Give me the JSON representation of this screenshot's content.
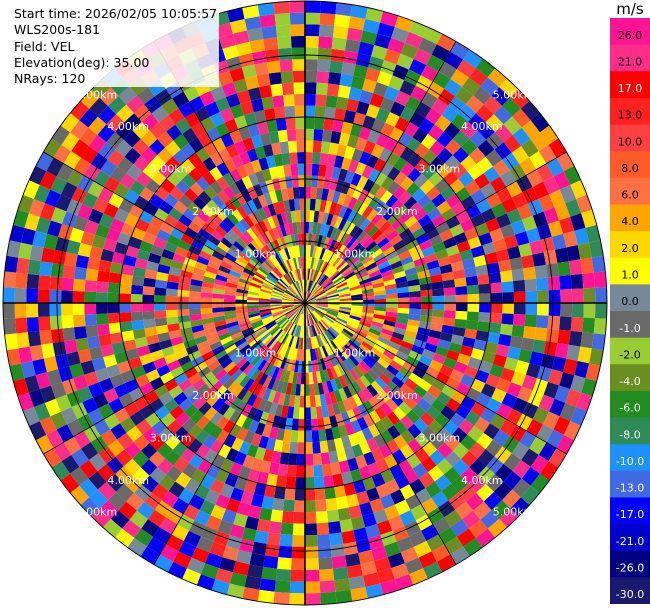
{
  "info": {
    "start_time": "Start time: 2026/02/05 10:05:57",
    "station": "WLS200s-181",
    "field": "Field: VEL",
    "elevation": "Elevation(deg): 35.00",
    "nrays": "NRays: 120"
  },
  "chart_data": {
    "type": "heatmap",
    "projection": "polar PPI",
    "n_rays": 120,
    "elevation_deg": 35.0,
    "field": "VEL",
    "unit": "m/s",
    "range_ring_labels": [
      "1.00km",
      "2.00km",
      "3.00km",
      "4.00km",
      "5.00km"
    ],
    "colorbar": {
      "title": "m/s",
      "tick_labels": [
        "26.0",
        "21.0",
        "17.0",
        "13.0",
        "10.0",
        "8.0",
        "6.0",
        "4.0",
        "2.0",
        "1.0",
        "0.0",
        "-1.0",
        "-2.0",
        "-4.0",
        "-6.0",
        "-8.0",
        "-10.0",
        "-13.0",
        "-17.0",
        "-21.0",
        "-26.0",
        "-30.0"
      ],
      "colors": [
        "#ff1493",
        "#ff2d8a",
        "#ff0000",
        "#ff2020",
        "#ff4040",
        "#ff5a2a",
        "#ff7043",
        "#ffa500",
        "#ffd700",
        "#ffff00",
        "#778899",
        "#696969",
        "#9acd32",
        "#6b8e23",
        "#228b22",
        "#2e8b57",
        "#1e90ff",
        "#4169e1",
        "#0000ff",
        "#0000cd",
        "#000080",
        "#191970"
      ]
    }
  }
}
